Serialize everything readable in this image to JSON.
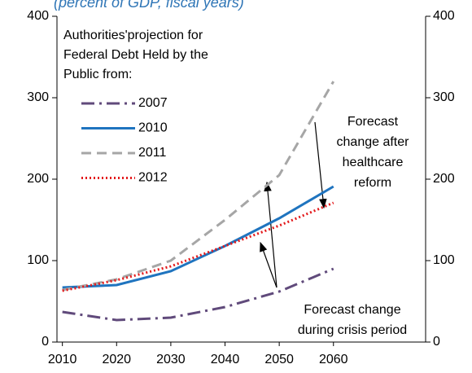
{
  "chart_data": {
    "type": "line",
    "subtitle": "(percent of GDP, fiscal years)",
    "legend_title": [
      "Authorities'projection for",
      "Federal Debt Held by the",
      "Public from:"
    ],
    "x": [
      2010,
      2020,
      2030,
      2040,
      2050,
      2060
    ],
    "xlim": [
      2009,
      2077
    ],
    "xticks": [
      2010,
      2020,
      2030,
      2040,
      2050,
      2060
    ],
    "ylim": [
      0,
      400
    ],
    "yticks": [
      0,
      100,
      200,
      300,
      400
    ],
    "y2lim": [
      0,
      400
    ],
    "y2ticks": [
      0,
      100,
      200,
      300,
      400
    ],
    "grid": false,
    "legend": "top-left",
    "series": [
      {
        "name": "2007",
        "color": "#604a7b",
        "dash": "16 6 3 6",
        "values": [
          37,
          27,
          30,
          43,
          62,
          90
        ]
      },
      {
        "name": "2010",
        "color": "#1f74bf",
        "dash": "none",
        "values": [
          67,
          70,
          87,
          118,
          152,
          191
        ]
      },
      {
        "name": "2011",
        "color": "#a6a6a6",
        "dash": "12 7",
        "values": [
          64,
          77,
          100,
          150,
          205,
          320
        ]
      },
      {
        "name": "2012",
        "color": "#e3191b",
        "dash": "2 3",
        "values": [
          63,
          76,
          93,
          118,
          143,
          171
        ]
      }
    ],
    "annotations": [
      {
        "lines": [
          "Forecast",
          "change after",
          "healthcare",
          "reform"
        ]
      },
      {
        "lines": [
          "Forecast change",
          "during crisis period"
        ]
      }
    ]
  }
}
